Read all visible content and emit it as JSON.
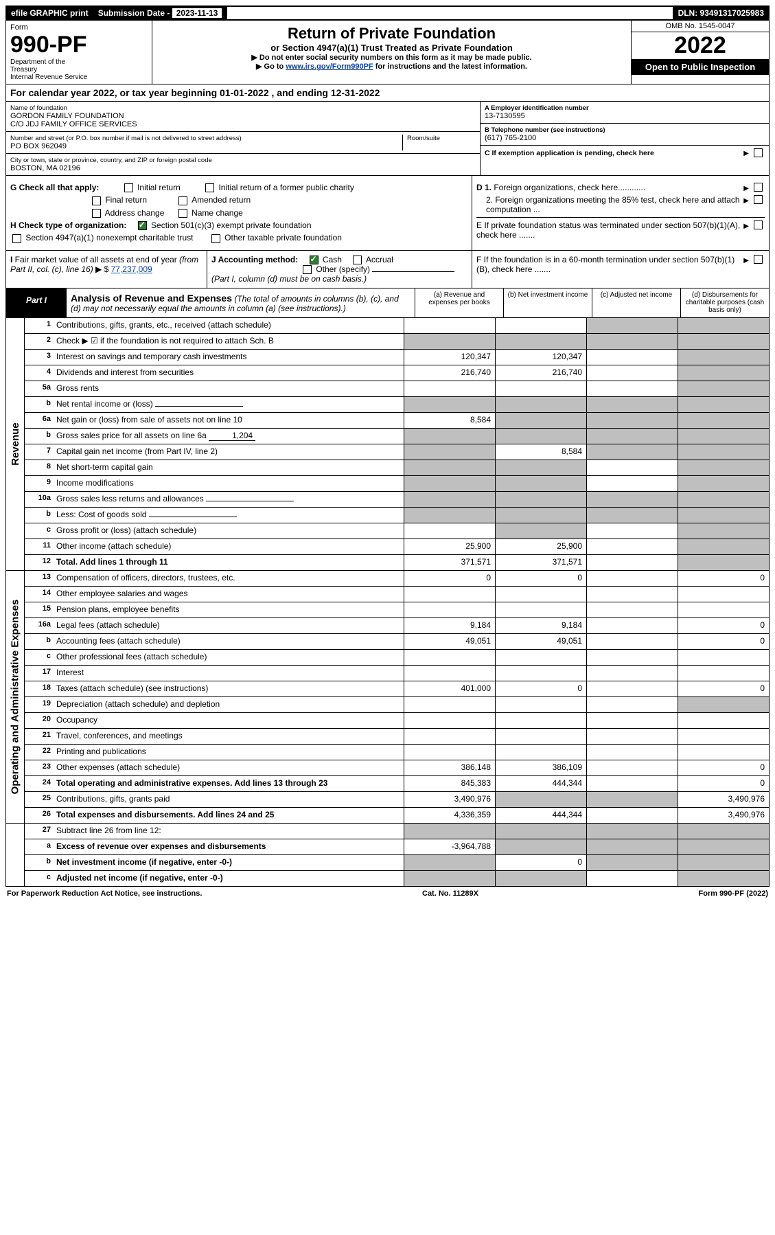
{
  "topbar": {
    "efile": "efile GRAPHIC print",
    "sub_date_label": "Submission Date - ",
    "sub_date_val": "2023-11-13",
    "dln": "DLN: 93491317025983"
  },
  "header": {
    "form_label": "Form",
    "form_number": "990-PF",
    "dept": "Department of the Treasury\nInternal Revenue Service",
    "title": "Return of Private Foundation",
    "subtitle": "or Section 4947(a)(1) Trust Treated as Private Foundation",
    "instr1": "▶ Do not enter social security numbers on this form as it may be made public.",
    "instr2_pre": "▶ Go to ",
    "instr2_link": "www.irs.gov/Form990PF",
    "instr2_post": " for instructions and the latest information.",
    "omb": "OMB No. 1545-0047",
    "year": "2022",
    "open": "Open to Public Inspection"
  },
  "cal_year": "For calendar year 2022, or tax year beginning 01-01-2022                          , and ending 12-31-2022",
  "info": {
    "name_label": "Name of foundation",
    "name_val": "GORDON FAMILY FOUNDATION\nC/O JDJ FAMILY OFFICE SERVICES",
    "addr_label": "Number and street (or P.O. box number if mail is not delivered to street address)",
    "addr_val": "PO BOX 962049",
    "room_label": "Room/suite",
    "city_label": "City or town, state or province, country, and ZIP or foreign postal code",
    "city_val": "BOSTON, MA  02196",
    "a_label": "A Employer identification number",
    "a_val": "13-7130595",
    "b_label": "B Telephone number (see instructions)",
    "b_val": "(617) 765-2100",
    "c_label": "C If exemption application is pending, check here"
  },
  "checks": {
    "g_label": "G Check all that apply:",
    "g_opts": [
      "Initial return",
      "Initial return of a former public charity",
      "Final return",
      "Amended return",
      "Address change",
      "Name change"
    ],
    "h_label": "H Check type of organization:",
    "h_opt1": "Section 501(c)(3) exempt private foundation",
    "h_opt2": "Section 4947(a)(1) nonexempt charitable trust",
    "h_opt3": "Other taxable private foundation",
    "d1": "D 1. Foreign organizations, check here............",
    "d2": "2. Foreign organizations meeting the 85% test, check here and attach computation ...",
    "e": "E  If private foundation status was terminated under section 507(b)(1)(A), check here .......",
    "i_label": "I Fair market value of all assets at end of year (from Part II, col. (c), line 16) ▶ $ ",
    "i_val": "77,237,009",
    "j_label": "J Accounting method:",
    "j_cash": "Cash",
    "j_accrual": "Accrual",
    "j_other": "Other (specify)",
    "j_note": "(Part I, column (d) must be on cash basis.)",
    "f": "F  If the foundation is in a 60-month termination under section 507(b)(1)(B), check here ......."
  },
  "part1": {
    "tab": "Part I",
    "title": "Analysis of Revenue and Expenses",
    "note": " (The total of amounts in columns (b), (c), and (d) may not necessarily equal the amounts in column (a) (see instructions).)",
    "col_a": "(a)   Revenue and expenses per books",
    "col_b": "(b)   Net investment income",
    "col_c": "(c)   Adjusted net income",
    "col_d": "(d)  Disbursements for charitable purposes (cash basis only)"
  },
  "side_rev": "Revenue",
  "side_exp": "Operating and Administrative Expenses",
  "rows_rev": [
    {
      "n": "1",
      "d": "Contributions, gifts, grants, etc., received (attach schedule)",
      "a": "",
      "b": "",
      "cgrey": true,
      "dgrey": true
    },
    {
      "n": "2",
      "d": "Check ▶ ☑ if the foundation is not required to attach Sch. B",
      "a": "",
      "b": "",
      "agrey": true,
      "bgrey": true,
      "cgrey": true,
      "dgrey": true,
      "bold": false
    },
    {
      "n": "3",
      "d": "Interest on savings and temporary cash investments",
      "a": "120,347",
      "b": "120,347",
      "dgrey": true
    },
    {
      "n": "4",
      "d": "Dividends and interest from securities",
      "a": "216,740",
      "b": "216,740",
      "dgrey": true
    },
    {
      "n": "5a",
      "d": "Gross rents",
      "a": "",
      "b": "",
      "dgrey": true
    },
    {
      "n": "b",
      "d": "Net rental income or (loss)",
      "a": "",
      "b": "",
      "agrey": true,
      "bgrey": true,
      "cgrey": true,
      "dgrey": true,
      "inline": true
    },
    {
      "n": "6a",
      "d": "Net gain or (loss) from sale of assets not on line 10",
      "a": "8,584",
      "b": "",
      "bgrey": true,
      "cgrey": true,
      "dgrey": true
    },
    {
      "n": "b",
      "d": "Gross sales price for all assets on line 6a",
      "inline_val": "1,204",
      "agrey": true,
      "bgrey": true,
      "cgrey": true,
      "dgrey": true
    },
    {
      "n": "7",
      "d": "Capital gain net income (from Part IV, line 2)",
      "a": "",
      "b": "8,584",
      "agrey": true,
      "cgrey": true,
      "dgrey": true
    },
    {
      "n": "8",
      "d": "Net short-term capital gain",
      "a": "",
      "b": "",
      "agrey": true,
      "bgrey": true,
      "dgrey": true
    },
    {
      "n": "9",
      "d": "Income modifications",
      "a": "",
      "b": "",
      "agrey": true,
      "bgrey": true,
      "dgrey": true
    },
    {
      "n": "10a",
      "d": "Gross sales less returns and allowances",
      "inline": true,
      "agrey": true,
      "bgrey": true,
      "cgrey": true,
      "dgrey": true
    },
    {
      "n": "b",
      "d": "Less: Cost of goods sold",
      "inline": true,
      "agrey": true,
      "bgrey": true,
      "cgrey": true,
      "dgrey": true
    },
    {
      "n": "c",
      "d": "Gross profit or (loss) (attach schedule)",
      "a": "",
      "b": "",
      "bgrey": true,
      "dgrey": true
    },
    {
      "n": "11",
      "d": "Other income (attach schedule)",
      "a": "25,900",
      "b": "25,900",
      "dgrey": true
    },
    {
      "n": "12",
      "d": "Total. Add lines 1 through 11",
      "a": "371,571",
      "b": "371,571",
      "dgrey": true,
      "bold": true
    }
  ],
  "rows_exp": [
    {
      "n": "13",
      "d": "Compensation of officers, directors, trustees, etc.",
      "a": "0",
      "b": "0",
      "dd": "0"
    },
    {
      "n": "14",
      "d": "Other employee salaries and wages",
      "a": "",
      "b": "",
      "dd": ""
    },
    {
      "n": "15",
      "d": "Pension plans, employee benefits",
      "a": "",
      "b": "",
      "dd": ""
    },
    {
      "n": "16a",
      "d": "Legal fees (attach schedule)",
      "a": "9,184",
      "b": "9,184",
      "dd": "0"
    },
    {
      "n": "b",
      "d": "Accounting fees (attach schedule)",
      "a": "49,051",
      "b": "49,051",
      "dd": "0"
    },
    {
      "n": "c",
      "d": "Other professional fees (attach schedule)",
      "a": "",
      "b": "",
      "dd": ""
    },
    {
      "n": "17",
      "d": "Interest",
      "a": "",
      "b": "",
      "dd": ""
    },
    {
      "n": "18",
      "d": "Taxes (attach schedule) (see instructions)",
      "a": "401,000",
      "b": "0",
      "dd": "0"
    },
    {
      "n": "19",
      "d": "Depreciation (attach schedule) and depletion",
      "a": "",
      "b": "",
      "dgrey": true
    },
    {
      "n": "20",
      "d": "Occupancy",
      "a": "",
      "b": "",
      "dd": ""
    },
    {
      "n": "21",
      "d": "Travel, conferences, and meetings",
      "a": "",
      "b": "",
      "dd": ""
    },
    {
      "n": "22",
      "d": "Printing and publications",
      "a": "",
      "b": "",
      "dd": ""
    },
    {
      "n": "23",
      "d": "Other expenses (attach schedule)",
      "a": "386,148",
      "b": "386,109",
      "dd": "0"
    },
    {
      "n": "24",
      "d": "Total operating and administrative expenses. Add lines 13 through 23",
      "a": "845,383",
      "b": "444,344",
      "dd": "0",
      "bold": true
    },
    {
      "n": "25",
      "d": "Contributions, gifts, grants paid",
      "a": "3,490,976",
      "bgrey": true,
      "cgrey": true,
      "dd": "3,490,976"
    },
    {
      "n": "26",
      "d": "Total expenses and disbursements. Add lines 24 and 25",
      "a": "4,336,359",
      "b": "444,344",
      "dd": "3,490,976",
      "bold": true
    }
  ],
  "rows_bottom": [
    {
      "n": "27",
      "d": "Subtract line 26 from line 12:",
      "agrey": true,
      "bgrey": true,
      "cgrey": true,
      "dgrey": true
    },
    {
      "n": "a",
      "d": "Excess of revenue over expenses and disbursements",
      "a": "-3,964,788",
      "bgrey": true,
      "cgrey": true,
      "dgrey": true,
      "bold": true
    },
    {
      "n": "b",
      "d": "Net investment income (if negative, enter -0-)",
      "agrey": true,
      "b": "0",
      "cgrey": true,
      "dgrey": true,
      "bold": true
    },
    {
      "n": "c",
      "d": "Adjusted net income (if negative, enter -0-)",
      "agrey": true,
      "bgrey": true,
      "dgrey": true,
      "bold": true
    }
  ],
  "footer": {
    "left": "For Paperwork Reduction Act Notice, see instructions.",
    "mid": "Cat. No. 11289X",
    "right": "Form 990-PF (2022)"
  }
}
